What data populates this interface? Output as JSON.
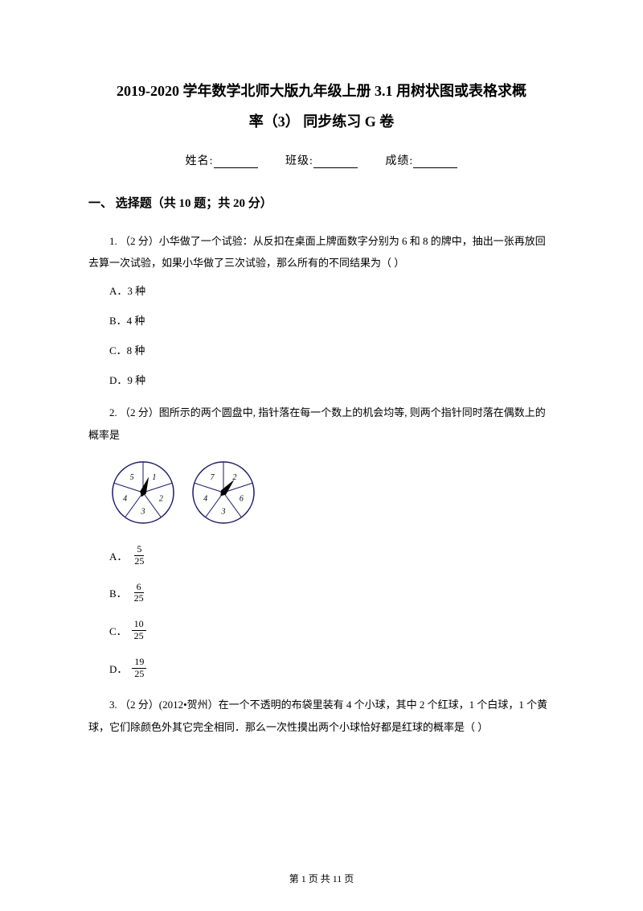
{
  "title_line1": "2019-2020 学年数学北师大版九年级上册 3.1 用树状图或表格求概",
  "title_line2": "率（3）  同步练习 G 卷",
  "info": {
    "name_label": "姓名:",
    "class_label": "班级:",
    "score_label": "成绩:"
  },
  "section1_title": "一、 选择题（共 10 题；共 20 分）",
  "q1": {
    "text": "1.  （2 分）小华做了一个试验：从反扣在桌面上牌面数字分别为 6 和 8 的牌中，抽出一张再放回去算一次试验，如果小华做了三次试验，那么所有的不同结果为（      ）",
    "a": "A．3 种",
    "b": "B．4 种",
    "c": "C．8 种",
    "d": "D．9 种"
  },
  "q2": {
    "text": "2.  （2 分）图所示的两个圆盘中, 指针落在每一个数上的机会均等, 则两个指针同时落在偶数上的概率是",
    "optA": {
      "label": "A．",
      "num": "5",
      "den": "25"
    },
    "optB": {
      "label": "B．",
      "num": "6",
      "den": "25"
    },
    "optC": {
      "label": "C．",
      "num": "10",
      "den": "25"
    },
    "optD": {
      "label": "D．",
      "num": "19",
      "den": "25"
    }
  },
  "q3": {
    "text": "3.  （2 分）(2012•贺州）在一个不透明的布袋里装有 4 个小球，其中 2 个红球，1 个白球，1 个黄球，它们除颜色外其它完全相同．那么一次性摸出两个小球恰好都是红球的概率是（      ）"
  },
  "spinners": {
    "left": {
      "sectors": [
        "1",
        "2",
        "3",
        "4",
        "5"
      ],
      "pointer_angle": 20
    },
    "right": {
      "sectors": [
        "2",
        "6",
        "3",
        "4",
        "7"
      ],
      "pointer_angle": 40
    },
    "radius": 38,
    "stroke": "#1a1a6a",
    "fill": "#ffffff",
    "font_size": 10
  },
  "footer": "第 1 页 共 11 页"
}
